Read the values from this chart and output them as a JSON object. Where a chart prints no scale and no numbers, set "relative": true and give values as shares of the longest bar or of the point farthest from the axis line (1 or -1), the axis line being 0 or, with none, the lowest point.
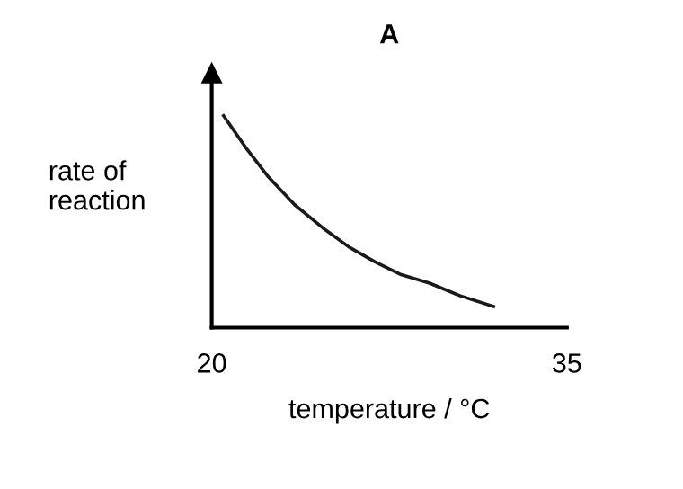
{
  "chart_data": {
    "type": "line",
    "title": "A",
    "xlabel": "temperature / °C",
    "ylabel": "rate of\nreaction",
    "relative": true,
    "xlim": [
      20,
      35
    ],
    "xticks": [
      20,
      35
    ],
    "tick_labels": "x",
    "grid": false,
    "legend": false,
    "x": [
      20.5,
      21.5,
      22.4,
      23.5,
      24.7,
      25.8,
      26.9,
      28.0,
      29.2,
      30.5,
      31.9
    ],
    "series": [
      {
        "color": "#1a1a1a",
        "values": [
          1.0,
          0.84,
          0.71,
          0.58,
          0.47,
          0.38,
          0.31,
          0.25,
          0.21,
          0.15,
          0.1
        ]
      }
    ]
  }
}
